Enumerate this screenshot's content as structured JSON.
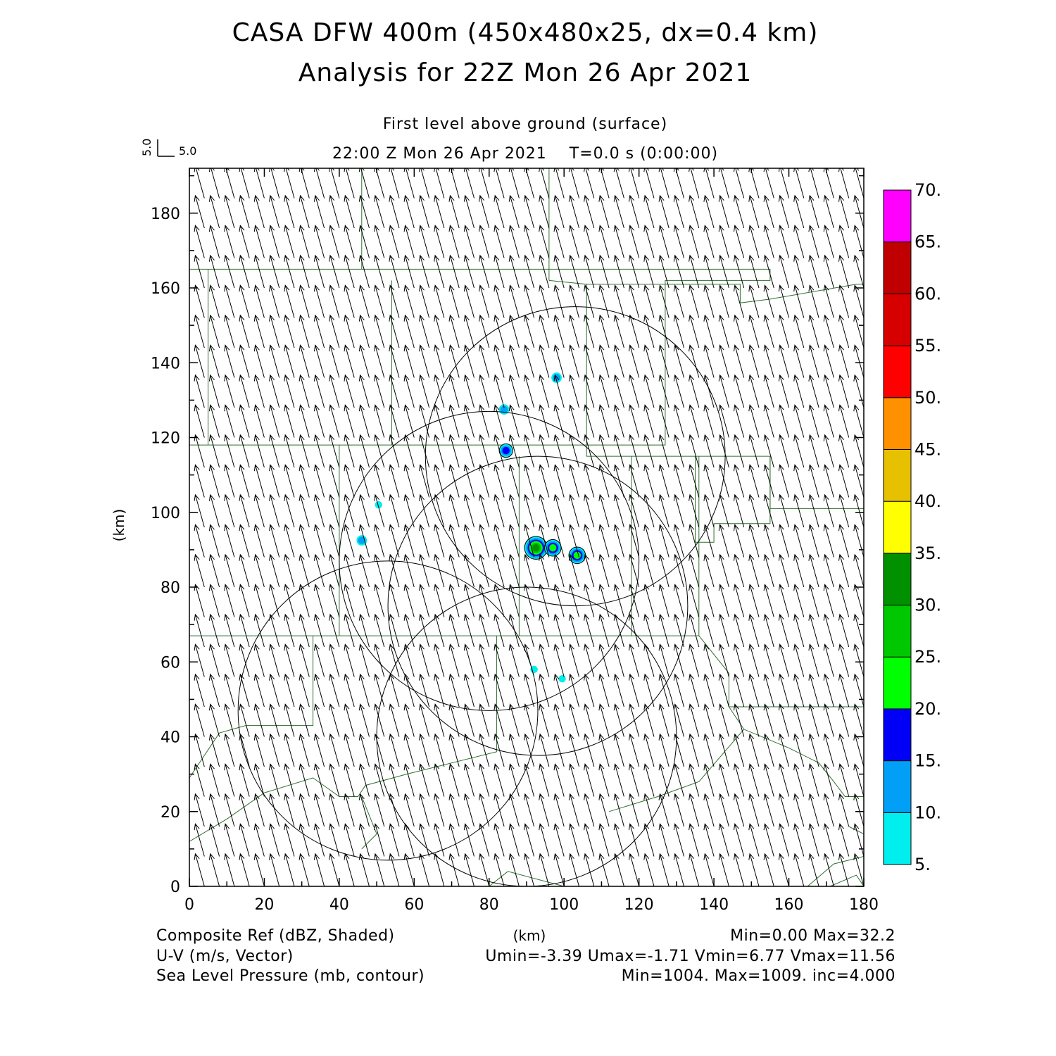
{
  "title_line1": "CASA DFW 400m (450x480x25, dx=0.4 km)",
  "title_line2": "Analysis for 22Z Mon 26 Apr 2021",
  "subtitle": "First level above ground (surface)",
  "time_line": "22:00 Z Mon 26 Apr 2021    T=0.0 s (0:00:00)",
  "ref_vector": {
    "u_label": "5.0",
    "v_label": "5.0"
  },
  "chart_data": {
    "type": "heatmap",
    "xlabel": "(km)",
    "ylabel": "(km)",
    "xlim": [
      0,
      180
    ],
    "ylim": [
      0,
      192
    ],
    "xticks": [
      0,
      20,
      40,
      60,
      80,
      100,
      120,
      140,
      160,
      180
    ],
    "yticks": [
      0,
      20,
      40,
      60,
      80,
      100,
      120,
      140,
      160,
      180
    ],
    "wind_vector": {
      "u": -2.5,
      "v": 9.0
    },
    "reflectivity_cells": [
      {
        "x": 92.5,
        "y": 90.5,
        "dbz": 32
      },
      {
        "x": 97,
        "y": 90.5,
        "dbz": 20
      },
      {
        "x": 103.5,
        "y": 88.5,
        "dbz": 20
      },
      {
        "x": 84.5,
        "y": 116.5,
        "dbz": 18
      },
      {
        "x": 84,
        "y": 127.5,
        "dbz": 10
      },
      {
        "x": 98,
        "y": 136,
        "dbz": 10
      },
      {
        "x": 46,
        "y": 92.5,
        "dbz": 12
      },
      {
        "x": 50.5,
        "y": 102,
        "dbz": 6
      },
      {
        "x": 92,
        "y": 58,
        "dbz": 6
      },
      {
        "x": 99.5,
        "y": 55.5,
        "dbz": 6
      }
    ],
    "radar_circles": [
      {
        "cx": 103,
        "cy": 115,
        "r": 40
      },
      {
        "cx": 80,
        "cy": 87,
        "r": 40
      },
      {
        "cx": 93,
        "cy": 75,
        "r": 40
      },
      {
        "cx": 53,
        "cy": 47,
        "r": 40
      },
      {
        "cx": 90,
        "cy": 40,
        "r": 40
      }
    ],
    "colorbar": {
      "levels": [
        "5.",
        "10.",
        "15.",
        "20.",
        "25.",
        "30.",
        "35.",
        "40.",
        "45.",
        "50.",
        "55.",
        "60.",
        "65.",
        "70."
      ],
      "colors": [
        "#00eeee",
        "#01a0f6",
        "#0000f6",
        "#00ff00",
        "#00c800",
        "#009000",
        "#ffff00",
        "#e7c000",
        "#ff9000",
        "#ff0000",
        "#d60000",
        "#c00000",
        "#ff00ff"
      ]
    }
  },
  "footer": {
    "left1": "Composite Ref (dBZ, Shaded)",
    "left2": "U-V (m/s, Vector)",
    "left3": "Sea Level Pressure (mb, contour)",
    "center_label": "(km)",
    "right1": "Min=0.00 Max=32.2",
    "right2": "Umin=-3.39 Umax=-1.71 Vmin=6.77 Vmax=11.56",
    "right3": "Min=1004. Max=1009. inc=4.000"
  }
}
